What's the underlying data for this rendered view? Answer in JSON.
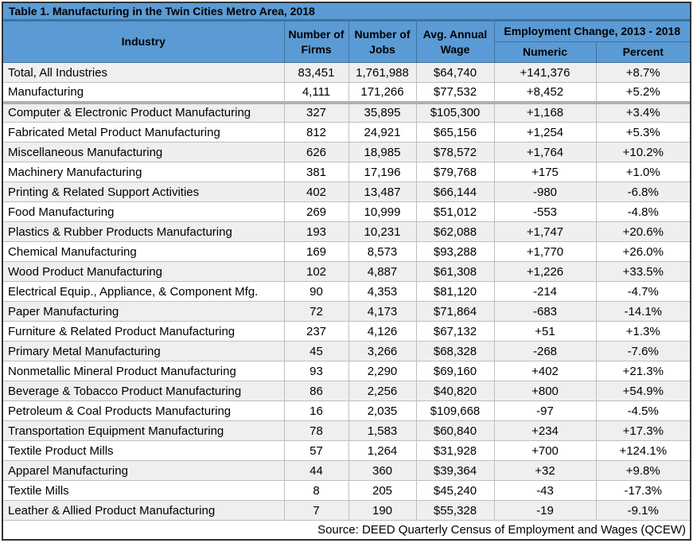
{
  "title": "Table 1. Manufacturing in the Twin Cities Metro Area, 2018",
  "columns": {
    "industry": "Industry",
    "firms": "Number of Firms",
    "jobs": "Number of Jobs",
    "wage": "Avg. Annual Wage",
    "emp_change": "Employment Change, 2013 - 2018",
    "numeric": "Numeric",
    "percent": "Percent"
  },
  "rows": [
    {
      "industry": "Total, All Industries",
      "firms": "83,451",
      "jobs": "1,761,988",
      "wage": "$64,740",
      "numeric": "+141,376",
      "percent": "+8.7%"
    },
    {
      "industry": "Manufacturing",
      "firms": "4,111",
      "jobs": "171,266",
      "wage": "$77,532",
      "numeric": "+8,452",
      "percent": "+5.2%"
    },
    {
      "industry": "Computer & Electronic Product Manufacturing",
      "firms": "327",
      "jobs": "35,895",
      "wage": "$105,300",
      "numeric": "+1,168",
      "percent": "+3.4%"
    },
    {
      "industry": "Fabricated Metal Product Manufacturing",
      "firms": "812",
      "jobs": "24,921",
      "wage": "$65,156",
      "numeric": "+1,254",
      "percent": "+5.3%"
    },
    {
      "industry": "Miscellaneous Manufacturing",
      "firms": "626",
      "jobs": "18,985",
      "wage": "$78,572",
      "numeric": "+1,764",
      "percent": "+10.2%"
    },
    {
      "industry": "Machinery Manufacturing",
      "firms": "381",
      "jobs": "17,196",
      "wage": "$79,768",
      "numeric": "+175",
      "percent": "+1.0%"
    },
    {
      "industry": "Printing & Related Support Activities",
      "firms": "402",
      "jobs": "13,487",
      "wage": "$66,144",
      "numeric": "-980",
      "percent": "-6.8%"
    },
    {
      "industry": "Food Manufacturing",
      "firms": "269",
      "jobs": "10,999",
      "wage": "$51,012",
      "numeric": "-553",
      "percent": "-4.8%"
    },
    {
      "industry": "Plastics & Rubber Products Manufacturing",
      "firms": "193",
      "jobs": "10,231",
      "wage": "$62,088",
      "numeric": "+1,747",
      "percent": "+20.6%"
    },
    {
      "industry": "Chemical Manufacturing",
      "firms": "169",
      "jobs": "8,573",
      "wage": "$93,288",
      "numeric": "+1,770",
      "percent": "+26.0%"
    },
    {
      "industry": "Wood Product Manufacturing",
      "firms": "102",
      "jobs": "4,887",
      "wage": "$61,308",
      "numeric": "+1,226",
      "percent": "+33.5%"
    },
    {
      "industry": "Electrical Equip., Appliance, & Component Mfg.",
      "firms": "90",
      "jobs": "4,353",
      "wage": "$81,120",
      "numeric": "-214",
      "percent": "-4.7%"
    },
    {
      "industry": "Paper Manufacturing",
      "firms": "72",
      "jobs": "4,173",
      "wage": "$71,864",
      "numeric": "-683",
      "percent": "-14.1%"
    },
    {
      "industry": "Furniture & Related Product Manufacturing",
      "firms": "237",
      "jobs": "4,126",
      "wage": "$67,132",
      "numeric": "+51",
      "percent": "+1.3%"
    },
    {
      "industry": "Primary Metal Manufacturing",
      "firms": "45",
      "jobs": "3,266",
      "wage": "$68,328",
      "numeric": "-268",
      "percent": "-7.6%"
    },
    {
      "industry": "Nonmetallic Mineral Product Manufacturing",
      "firms": "93",
      "jobs": "2,290",
      "wage": "$69,160",
      "numeric": "+402",
      "percent": "+21.3%"
    },
    {
      "industry": "Beverage & Tobacco Product Manufacturing",
      "firms": "86",
      "jobs": "2,256",
      "wage": "$40,820",
      "numeric": "+800",
      "percent": "+54.9%"
    },
    {
      "industry": "Petroleum & Coal Products Manufacturing",
      "firms": "16",
      "jobs": "2,035",
      "wage": "$109,668",
      "numeric": "-97",
      "percent": "-4.5%"
    },
    {
      "industry": "Transportation Equipment Manufacturing",
      "firms": "78",
      "jobs": "1,583",
      "wage": "$60,840",
      "numeric": "+234",
      "percent": "+17.3%"
    },
    {
      "industry": "Textile Product Mills",
      "firms": "57",
      "jobs": "1,264",
      "wage": "$31,928",
      "numeric": "+700",
      "percent": "+124.1%"
    },
    {
      "industry": "Apparel Manufacturing",
      "firms": "44",
      "jobs": "360",
      "wage": "$39,364",
      "numeric": "+32",
      "percent": "+9.8%"
    },
    {
      "industry": "Textile Mills",
      "firms": "8",
      "jobs": "205",
      "wage": "$45,240",
      "numeric": "-43",
      "percent": "-17.3%"
    },
    {
      "industry": "Leather & Allied Product Manufacturing",
      "firms": "7",
      "jobs": "190",
      "wage": "$55,328",
      "numeric": "-19",
      "percent": "-9.1%"
    }
  ],
  "source": "Source: DEED Quarterly Census of Employment and Wages (QCEW)",
  "colors": {
    "header_bg": "#5B9BD5",
    "header_border": "#41719C",
    "stripe": "#EFEFEF",
    "body_border": "#BFBFBF",
    "section_divider": "#AFAFAF",
    "outer_border": "#333333"
  }
}
